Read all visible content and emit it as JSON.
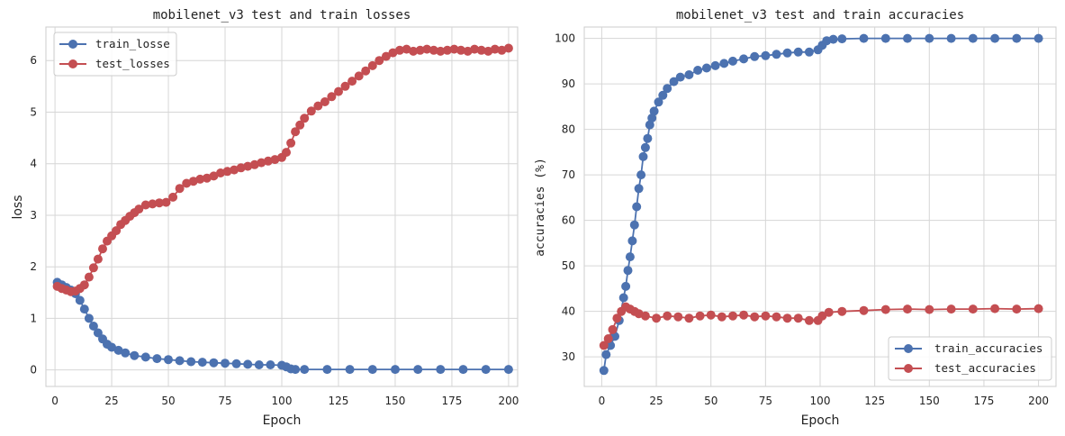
{
  "chart_data": [
    {
      "type": "line",
      "title": "mobilenet_v3 test and train losses",
      "xlabel": "Epoch",
      "ylabel": "loss",
      "xlim": [
        -4,
        204
      ],
      "ylim": [
        -0.32,
        6.65
      ],
      "xticks": [
        0,
        25,
        50,
        75,
        100,
        125,
        150,
        175,
        200
      ],
      "yticks": [
        0,
        1,
        2,
        3,
        4,
        5,
        6
      ],
      "grid": true,
      "legend_position": "top-left",
      "series": [
        {
          "name": "train_losse",
          "color": "#4c72b0",
          "points": [
            [
              1,
              1.7
            ],
            [
              3,
              1.65
            ],
            [
              5,
              1.6
            ],
            [
              7,
              1.55
            ],
            [
              9,
              1.48
            ],
            [
              11,
              1.35
            ],
            [
              13,
              1.18
            ],
            [
              15,
              1.0
            ],
            [
              17,
              0.85
            ],
            [
              19,
              0.72
            ],
            [
              21,
              0.6
            ],
            [
              23,
              0.5
            ],
            [
              25,
              0.44
            ],
            [
              28,
              0.38
            ],
            [
              31,
              0.33
            ],
            [
              35,
              0.28
            ],
            [
              40,
              0.25
            ],
            [
              45,
              0.22
            ],
            [
              50,
              0.2
            ],
            [
              55,
              0.18
            ],
            [
              60,
              0.16
            ],
            [
              65,
              0.15
            ],
            [
              70,
              0.14
            ],
            [
              75,
              0.13
            ],
            [
              80,
              0.12
            ],
            [
              85,
              0.11
            ],
            [
              90,
              0.1
            ],
            [
              95,
              0.1
            ],
            [
              100,
              0.09
            ],
            [
              102,
              0.06
            ],
            [
              104,
              0.02
            ],
            [
              106,
              0.01
            ],
            [
              110,
              0.01
            ],
            [
              120,
              0.01
            ],
            [
              130,
              0.01
            ],
            [
              140,
              0.01
            ],
            [
              150,
              0.01
            ],
            [
              160,
              0.01
            ],
            [
              170,
              0.01
            ],
            [
              180,
              0.01
            ],
            [
              190,
              0.01
            ],
            [
              200,
              0.01
            ]
          ]
        },
        {
          "name": "test_losses",
          "color": "#c44e52",
          "points": [
            [
              1,
              1.62
            ],
            [
              3,
              1.58
            ],
            [
              5,
              1.55
            ],
            [
              7,
              1.52
            ],
            [
              9,
              1.53
            ],
            [
              11,
              1.58
            ],
            [
              13,
              1.65
            ],
            [
              15,
              1.8
            ],
            [
              17,
              1.98
            ],
            [
              19,
              2.15
            ],
            [
              21,
              2.35
            ],
            [
              23,
              2.5
            ],
            [
              25,
              2.6
            ],
            [
              27,
              2.7
            ],
            [
              29,
              2.82
            ],
            [
              31,
              2.9
            ],
            [
              33,
              2.98
            ],
            [
              35,
              3.05
            ],
            [
              37,
              3.12
            ],
            [
              40,
              3.2
            ],
            [
              43,
              3.22
            ],
            [
              46,
              3.24
            ],
            [
              49,
              3.25
            ],
            [
              52,
              3.35
            ],
            [
              55,
              3.52
            ],
            [
              58,
              3.62
            ],
            [
              61,
              3.66
            ],
            [
              64,
              3.7
            ],
            [
              67,
              3.72
            ],
            [
              70,
              3.76
            ],
            [
              73,
              3.82
            ],
            [
              76,
              3.85
            ],
            [
              79,
              3.88
            ],
            [
              82,
              3.92
            ],
            [
              85,
              3.95
            ],
            [
              88,
              3.98
            ],
            [
              91,
              4.02
            ],
            [
              94,
              4.05
            ],
            [
              97,
              4.08
            ],
            [
              100,
              4.12
            ],
            [
              102,
              4.22
            ],
            [
              104,
              4.4
            ],
            [
              106,
              4.62
            ],
            [
              108,
              4.75
            ],
            [
              110,
              4.88
            ],
            [
              113,
              5.02
            ],
            [
              116,
              5.12
            ],
            [
              119,
              5.2
            ],
            [
              122,
              5.3
            ],
            [
              125,
              5.4
            ],
            [
              128,
              5.5
            ],
            [
              131,
              5.6
            ],
            [
              134,
              5.7
            ],
            [
              137,
              5.8
            ],
            [
              140,
              5.9
            ],
            [
              143,
              6.0
            ],
            [
              146,
              6.08
            ],
            [
              149,
              6.15
            ],
            [
              152,
              6.2
            ],
            [
              155,
              6.22
            ],
            [
              158,
              6.18
            ],
            [
              161,
              6.2
            ],
            [
              164,
              6.22
            ],
            [
              167,
              6.2
            ],
            [
              170,
              6.18
            ],
            [
              173,
              6.2
            ],
            [
              176,
              6.22
            ],
            [
              179,
              6.2
            ],
            [
              182,
              6.18
            ],
            [
              185,
              6.22
            ],
            [
              188,
              6.2
            ],
            [
              191,
              6.18
            ],
            [
              194,
              6.22
            ],
            [
              197,
              6.2
            ],
            [
              200,
              6.24
            ]
          ]
        }
      ]
    },
    {
      "type": "line",
      "title": "mobilenet_v3 test and train accuracies",
      "xlabel": "Epoch",
      "ylabel": "accuracies (%)",
      "xlim": [
        -8,
        208
      ],
      "ylim": [
        23.5,
        102.5
      ],
      "xticks": [
        0,
        25,
        50,
        75,
        100,
        125,
        150,
        175,
        200
      ],
      "yticks": [
        30,
        40,
        50,
        60,
        70,
        80,
        90,
        100
      ],
      "grid": true,
      "legend_position": "bottom-right",
      "series": [
        {
          "name": "train_accuracies",
          "color": "#4c72b0",
          "points": [
            [
              1,
              27
            ],
            [
              2,
              30.5
            ],
            [
              4,
              32.5
            ],
            [
              6,
              34.5
            ],
            [
              8,
              38
            ],
            [
              10,
              43
            ],
            [
              11,
              45.5
            ],
            [
              12,
              49
            ],
            [
              13,
              52
            ],
            [
              14,
              55.5
            ],
            [
              15,
              59
            ],
            [
              16,
              63
            ],
            [
              17,
              67
            ],
            [
              18,
              70
            ],
            [
              19,
              74
            ],
            [
              20,
              76
            ],
            [
              21,
              78
            ],
            [
              22,
              81
            ],
            [
              23,
              82.5
            ],
            [
              24,
              84
            ],
            [
              26,
              86
            ],
            [
              28,
              87.5
            ],
            [
              30,
              89
            ],
            [
              33,
              90.5
            ],
            [
              36,
              91.5
            ],
            [
              40,
              92
            ],
            [
              44,
              93
            ],
            [
              48,
              93.5
            ],
            [
              52,
              94
            ],
            [
              56,
              94.5
            ],
            [
              60,
              95
            ],
            [
              65,
              95.5
            ],
            [
              70,
              96
            ],
            [
              75,
              96.2
            ],
            [
              80,
              96.5
            ],
            [
              85,
              96.8
            ],
            [
              90,
              97
            ],
            [
              95,
              97
            ],
            [
              99,
              97.5
            ],
            [
              101,
              98.5
            ],
            [
              103,
              99.5
            ],
            [
              106,
              99.8
            ],
            [
              110,
              99.9
            ],
            [
              120,
              100
            ],
            [
              130,
              100
            ],
            [
              140,
              100
            ],
            [
              150,
              100
            ],
            [
              160,
              100
            ],
            [
              170,
              100
            ],
            [
              180,
              100
            ],
            [
              190,
              100
            ],
            [
              200,
              100
            ]
          ]
        },
        {
          "name": "test_accuracies",
          "color": "#c44e52",
          "points": [
            [
              1,
              32.5
            ],
            [
              3,
              34
            ],
            [
              5,
              36
            ],
            [
              7,
              38.5
            ],
            [
              9,
              40
            ],
            [
              11,
              41
            ],
            [
              13,
              40.5
            ],
            [
              15,
              40
            ],
            [
              17,
              39.5
            ],
            [
              20,
              39
            ],
            [
              25,
              38.5
            ],
            [
              30,
              39
            ],
            [
              35,
              38.8
            ],
            [
              40,
              38.5
            ],
            [
              45,
              39
            ],
            [
              50,
              39.2
            ],
            [
              55,
              38.8
            ],
            [
              60,
              39
            ],
            [
              65,
              39.2
            ],
            [
              70,
              38.8
            ],
            [
              75,
              39
            ],
            [
              80,
              38.8
            ],
            [
              85,
              38.5
            ],
            [
              90,
              38.5
            ],
            [
              95,
              38
            ],
            [
              99,
              38
            ],
            [
              101,
              39
            ],
            [
              104,
              39.8
            ],
            [
              110,
              40
            ],
            [
              120,
              40.2
            ],
            [
              130,
              40.4
            ],
            [
              140,
              40.5
            ],
            [
              150,
              40.4
            ],
            [
              160,
              40.5
            ],
            [
              170,
              40.5
            ],
            [
              180,
              40.6
            ],
            [
              190,
              40.5
            ],
            [
              200,
              40.6
            ]
          ]
        }
      ]
    }
  ]
}
